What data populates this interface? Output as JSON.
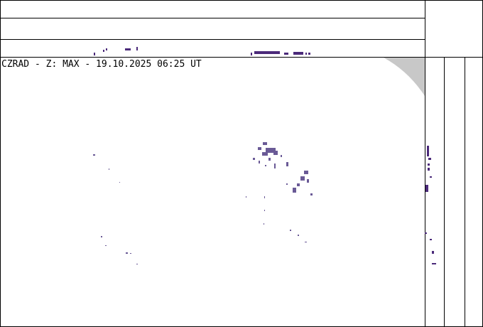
{
  "header": {
    "title": "CZRAD - Z: MAX - 19.10.2025 06:25 UT"
  }
}
